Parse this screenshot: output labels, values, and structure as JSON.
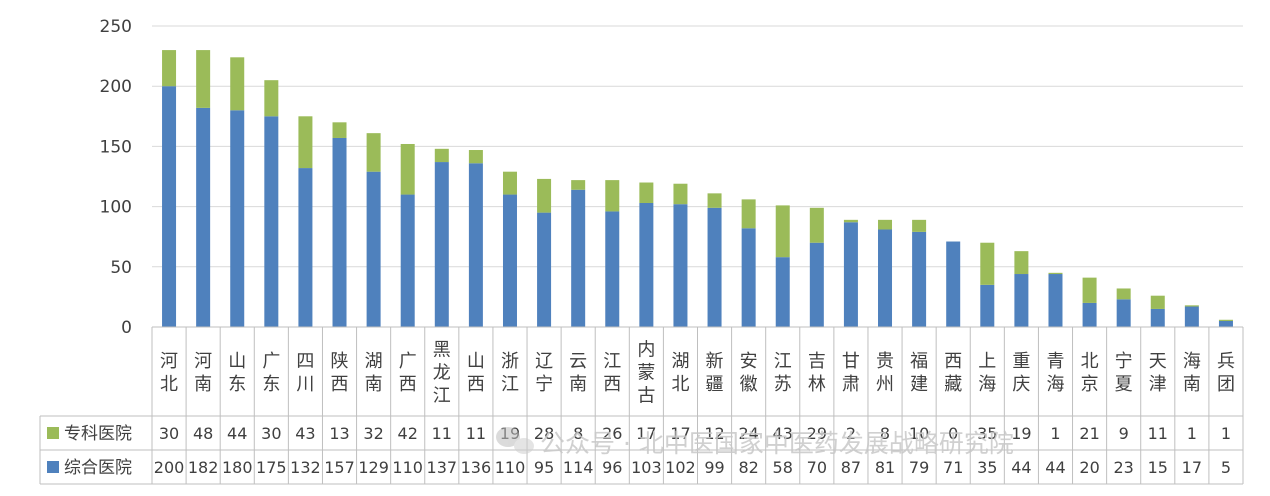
{
  "chart_data": {
    "type": "bar",
    "stacked": true,
    "categories": [
      "河北",
      "河南",
      "山东",
      "广东",
      "四川",
      "陕西",
      "湖南",
      "广西",
      "黑龙江",
      "山西",
      "浙江",
      "辽宁",
      "云南",
      "江西",
      "内蒙古",
      "湖北",
      "新疆",
      "安徽",
      "江苏",
      "吉林",
      "甘肃",
      "贵州",
      "福建",
      "西藏",
      "上海",
      "重庆",
      "青海",
      "北京",
      "宁夏",
      "天津",
      "海南",
      "兵团"
    ],
    "series": [
      {
        "name": "综合医院",
        "color": "#4f81bd",
        "values": [
          200,
          182,
          180,
          175,
          132,
          157,
          129,
          110,
          137,
          136,
          110,
          95,
          114,
          96,
          103,
          102,
          99,
          82,
          58,
          70,
          87,
          81,
          79,
          71,
          35,
          44,
          44,
          20,
          23,
          15,
          17,
          5
        ]
      },
      {
        "name": "专科医院",
        "color": "#9bbb59",
        "values": [
          30,
          48,
          44,
          30,
          43,
          13,
          32,
          42,
          11,
          11,
          19,
          28,
          8,
          26,
          17,
          17,
          12,
          24,
          43,
          29,
          2,
          8,
          10,
          0,
          35,
          19,
          1,
          21,
          9,
          11,
          1,
          1
        ]
      }
    ],
    "ylim": [
      0,
      250
    ],
    "yticks": [
      "0",
      "50",
      "100",
      "150",
      "200",
      "250"
    ],
    "grid": true,
    "data_table": true
  },
  "watermark": "公众号 · 北中医国家中医药发展战略研究院",
  "watermark_icon": "wechat-icon"
}
